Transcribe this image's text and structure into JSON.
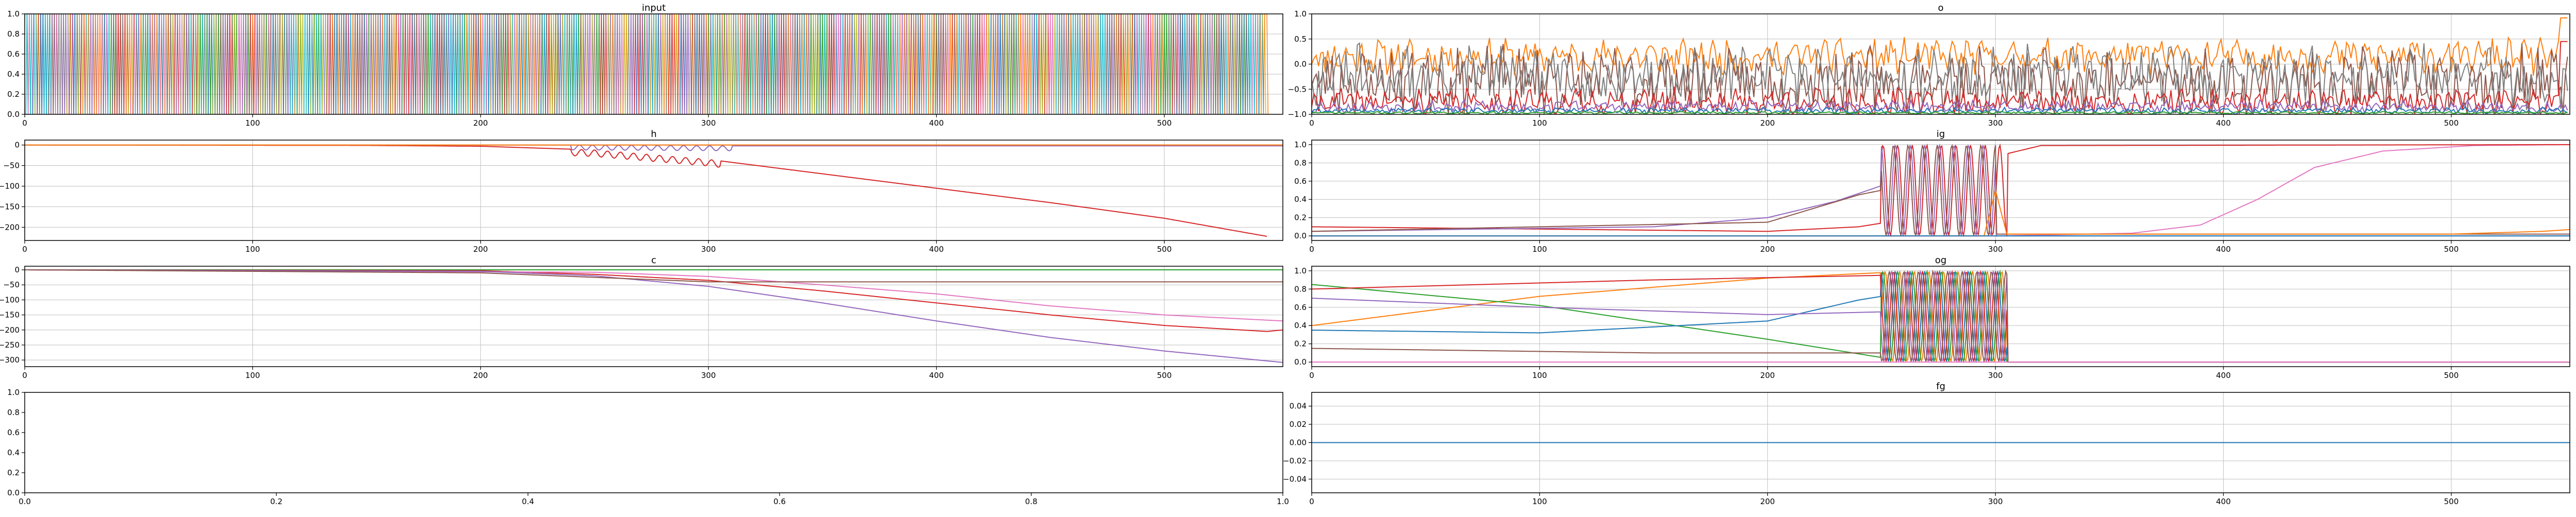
{
  "figure": {
    "background": "#ffffff"
  },
  "palette": [
    "#1f77b4",
    "#ff7f0e",
    "#2ca02c",
    "#d62728",
    "#9467bd",
    "#8c564b",
    "#e377c2",
    "#7f7f7f",
    "#bcbd22",
    "#17becf"
  ],
  "chart_data": [
    {
      "id": "input",
      "type": "line",
      "title": "input",
      "xlim": [
        0,
        552
      ],
      "ylim": [
        0,
        1.0
      ],
      "xticks": [
        0,
        100,
        200,
        300,
        400,
        500
      ],
      "yticks": [
        0.0,
        0.2,
        0.4,
        0.6,
        0.8,
        1.0
      ],
      "ytick_labels": [
        "0.0",
        "0.2",
        "0.4",
        "0.6",
        "0.8",
        "1.0"
      ],
      "grid": true,
      "series": [
        {
          "pattern": "onehot",
          "n_series": 10,
          "length": 545,
          "seed": 7
        }
      ]
    },
    {
      "id": "o",
      "type": "line",
      "title": "o",
      "xlim": [
        0,
        552
      ],
      "ylim": [
        -1.0,
        1.0
      ],
      "xticks": [
        0,
        100,
        200,
        300,
        400,
        500
      ],
      "yticks": [
        -1.0,
        -0.5,
        0.0,
        0.5,
        1.0
      ],
      "ytick_labels": [
        "−1.0",
        "−0.5",
        "0.0",
        "0.5",
        "1.0"
      ],
      "grid": true,
      "series": [
        {
          "color": "#ff7f0e",
          "pattern": "noise",
          "base": 0.15,
          "amp": 0.28,
          "length": 552,
          "seed": 11,
          "end_jump": 0.92
        },
        {
          "color": "#8c564b",
          "pattern": "noise",
          "base": -0.35,
          "amp": 0.55,
          "length": 552,
          "seed": 23
        },
        {
          "color": "#7f7f7f",
          "pattern": "noise",
          "base": -0.25,
          "amp": 0.5,
          "length": 552,
          "seed": 31
        },
        {
          "color": "#d62728",
          "pattern": "noise",
          "base": -0.75,
          "amp": 0.22,
          "length": 552,
          "seed": 41,
          "end_jump": 0.45
        },
        {
          "color": "#9467bd",
          "pattern": "noise",
          "base": -0.85,
          "amp": 0.1,
          "length": 552,
          "seed": 53
        },
        {
          "color": "#1f77b4",
          "pattern": "noise",
          "base": -0.93,
          "amp": 0.05,
          "length": 552,
          "seed": 61
        },
        {
          "color": "#2ca02c",
          "pattern": "noise",
          "base": -0.97,
          "amp": 0.02,
          "length": 552,
          "seed": 71
        }
      ]
    },
    {
      "id": "h",
      "type": "line",
      "title": "h",
      "xlim": [
        0,
        552
      ],
      "ylim": [
        -232,
        12
      ],
      "xticks": [
        0,
        100,
        200,
        300,
        400,
        500
      ],
      "yticks": [
        0,
        -50,
        -100,
        -150,
        -200
      ],
      "ytick_labels": [
        "0",
        "−50",
        "−100",
        "−150",
        "−200"
      ],
      "grid": true,
      "series": [
        {
          "color": "#d62728",
          "pattern": "points",
          "points": [
            [
              0,
              0
            ],
            [
              150,
              -1
            ],
            [
              200,
              -3
            ],
            [
              250,
              -12
            ],
            [
              300,
              -35
            ],
            [
              350,
              -70
            ],
            [
              400,
              -105
            ],
            [
              450,
              -140
            ],
            [
              500,
              -178
            ],
            [
              545,
              -222
            ]
          ],
          "osc": {
            "from": 240,
            "to": 305,
            "amp": 16
          }
        },
        {
          "color": "#9467bd",
          "pattern": "points",
          "points": [
            [
              0,
              0
            ],
            [
              240,
              0
            ],
            [
              310,
              -2
            ],
            [
              552,
              -2
            ]
          ],
          "osc": {
            "from": 240,
            "to": 310,
            "amp": 12
          }
        },
        {
          "color": "#8c564b",
          "pattern": "points",
          "points": [
            [
              0,
              0
            ],
            [
              552,
              0
            ]
          ]
        },
        {
          "color": "#ff7f0e",
          "pattern": "points",
          "points": [
            [
              0,
              0
            ],
            [
              552,
              0
            ]
          ]
        }
      ]
    },
    {
      "id": "ig",
      "type": "line",
      "title": "ig",
      "xlim": [
        0,
        552
      ],
      "ylim": [
        -0.05,
        1.05
      ],
      "xticks": [
        0,
        100,
        200,
        300,
        400,
        500
      ],
      "yticks": [
        0.0,
        0.2,
        0.4,
        0.6,
        0.8,
        1.0
      ],
      "ytick_labels": [
        "0.0",
        "0.2",
        "0.4",
        "0.6",
        "0.8",
        "1.0"
      ],
      "grid": true,
      "series": [
        {
          "color": "#e377c2",
          "pattern": "points",
          "points": [
            [
              0,
              0.0
            ],
            [
              300,
              0.0
            ],
            [
              360,
              0.03
            ],
            [
              390,
              0.12
            ],
            [
              415,
              0.4
            ],
            [
              440,
              0.75
            ],
            [
              470,
              0.93
            ],
            [
              510,
              0.99
            ],
            [
              552,
              1.0
            ]
          ]
        },
        {
          "color": "#d62728",
          "pattern": "points",
          "points": [
            [
              0,
              0.1
            ],
            [
              200,
              0.05
            ],
            [
              240,
              0.1
            ],
            [
              250,
              0.14
            ]
          ],
          "osc": {
            "from": 250,
            "to": 305
          },
          "after": [
            [
              305,
              0.9
            ],
            [
              320,
              0.99
            ],
            [
              552,
              1.0
            ]
          ]
        },
        {
          "color": "#9467bd",
          "pattern": "points",
          "points": [
            [
              0,
              0.05
            ],
            [
              150,
              0.1
            ],
            [
              200,
              0.2
            ],
            [
              230,
              0.38
            ],
            [
              250,
              0.55
            ]
          ],
          "osc": {
            "from": 250,
            "to": 300
          },
          "after": [
            [
              300,
              0.0
            ],
            [
              552,
              0.0
            ]
          ]
        },
        {
          "color": "#8c564b",
          "pattern": "points",
          "points": [
            [
              0,
              0.05
            ],
            [
              200,
              0.15
            ],
            [
              240,
              0.45
            ],
            [
              250,
              0.5
            ]
          ],
          "osc": {
            "from": 250,
            "to": 300
          },
          "after": [
            [
              300,
              0.02
            ],
            [
              552,
              0.02
            ]
          ]
        },
        {
          "color": "#ff7f0e",
          "pattern": "points",
          "points": [
            [
              0,
              0.0
            ],
            [
              295,
              0.0
            ],
            [
              300,
              0.5
            ],
            [
              305,
              0.02
            ],
            [
              500,
              0.02
            ],
            [
              540,
              0.05
            ],
            [
              552,
              0.07
            ]
          ]
        },
        {
          "color": "#1f77b4",
          "pattern": "points",
          "points": [
            [
              0,
              0.0
            ],
            [
              552,
              0.0
            ]
          ]
        }
      ]
    },
    {
      "id": "c",
      "type": "line",
      "title": "c",
      "xlim": [
        0,
        552
      ],
      "ylim": [
        -322,
        12
      ],
      "xticks": [
        0,
        100,
        200,
        300,
        400,
        500
      ],
      "yticks": [
        0,
        -50,
        -100,
        -150,
        -200,
        -250,
        -300
      ],
      "ytick_labels": [
        "0",
        "−50",
        "−100",
        "−150",
        "−200",
        "−250",
        "−300"
      ],
      "grid": true,
      "series": [
        {
          "color": "#2ca02c",
          "pattern": "points",
          "points": [
            [
              0,
              0
            ],
            [
              552,
              0
            ]
          ]
        },
        {
          "color": "#d62728",
          "pattern": "points",
          "points": [
            [
              0,
              0
            ],
            [
              200,
              -3
            ],
            [
              250,
              -15
            ],
            [
              300,
              -35
            ],
            [
              350,
              -70
            ],
            [
              400,
              -110
            ],
            [
              450,
              -150
            ],
            [
              500,
              -185
            ],
            [
              545,
              -205
            ],
            [
              552,
              -200
            ]
          ]
        },
        {
          "color": "#e377c2",
          "pattern": "points",
          "points": [
            [
              0,
              0
            ],
            [
              250,
              -8
            ],
            [
              300,
              -22
            ],
            [
              350,
              -50
            ],
            [
              400,
              -80
            ],
            [
              450,
              -120
            ],
            [
              500,
              -150
            ],
            [
              552,
              -170
            ]
          ]
        },
        {
          "color": "#9467bd",
          "pattern": "points",
          "points": [
            [
              0,
              0
            ],
            [
              200,
              -5
            ],
            [
              250,
              -20
            ],
            [
              300,
              -55
            ],
            [
              350,
              -110
            ],
            [
              400,
              -170
            ],
            [
              450,
              -225
            ],
            [
              500,
              -270
            ],
            [
              552,
              -308
            ]
          ]
        },
        {
          "color": "#8c564b",
          "pattern": "points",
          "points": [
            [
              0,
              0
            ],
            [
              200,
              -10
            ],
            [
              300,
              -40
            ],
            [
              552,
              -40
            ]
          ]
        }
      ]
    },
    {
      "id": "og",
      "type": "line",
      "title": "og",
      "xlim": [
        0,
        552
      ],
      "ylim": [
        -0.05,
        1.05
      ],
      "xticks": [
        0,
        100,
        200,
        300,
        400,
        500
      ],
      "yticks": [
        0.0,
        0.2,
        0.4,
        0.6,
        0.8,
        1.0
      ],
      "ytick_labels": [
        "0.0",
        "0.2",
        "0.4",
        "0.6",
        "0.8",
        "1.0"
      ],
      "grid": true,
      "series": [
        {
          "color": "#ff7f0e",
          "pattern": "points",
          "points": [
            [
              0,
              0.4
            ],
            [
              100,
              0.72
            ],
            [
              200,
              0.92
            ],
            [
              250,
              0.98
            ]
          ],
          "osc": {
            "from": 250,
            "to": 305
          },
          "after": [
            [
              305,
              0.0
            ],
            [
              552,
              0.0
            ]
          ]
        },
        {
          "color": "#2ca02c",
          "pattern": "points",
          "points": [
            [
              0,
              0.85
            ],
            [
              100,
              0.62
            ],
            [
              200,
              0.25
            ],
            [
              250,
              0.05
            ]
          ],
          "osc": {
            "from": 250,
            "to": 305
          },
          "after": [
            [
              305,
              0.0
            ],
            [
              552,
              0.0
            ]
          ]
        },
        {
          "color": "#1f77b4",
          "pattern": "points",
          "points": [
            [
              0,
              0.35
            ],
            [
              100,
              0.32
            ],
            [
              200,
              0.45
            ],
            [
              240,
              0.68
            ],
            [
              250,
              0.72
            ]
          ],
          "osc": {
            "from": 250,
            "to": 305
          },
          "after": [
            [
              305,
              0.0
            ],
            [
              552,
              0.0
            ]
          ]
        },
        {
          "color": "#d62728",
          "pattern": "points",
          "points": [
            [
              0,
              0.8
            ],
            [
              150,
              0.9
            ],
            [
              250,
              0.95
            ]
          ],
          "osc": {
            "from": 250,
            "to": 305
          },
          "after": [
            [
              305,
              0.0
            ],
            [
              552,
              0.0
            ]
          ]
        },
        {
          "color": "#9467bd",
          "pattern": "points",
          "points": [
            [
              0,
              0.7
            ],
            [
              100,
              0.6
            ],
            [
              200,
              0.52
            ],
            [
              250,
              0.55
            ]
          ],
          "osc": {
            "from": 250,
            "to": 305
          },
          "after": [
            [
              305,
              0.0
            ],
            [
              552,
              0.0
            ]
          ]
        },
        {
          "color": "#8c564b",
          "pattern": "points",
          "points": [
            [
              0,
              0.15
            ],
            [
              150,
              0.1
            ],
            [
              250,
              0.1
            ]
          ],
          "osc": {
            "from": 250,
            "to": 305
          },
          "after": [
            [
              305,
              0.0
            ],
            [
              552,
              0.0
            ]
          ]
        },
        {
          "color": "#e377c2",
          "pattern": "points",
          "points": [
            [
              0,
              0.0
            ],
            [
              552,
              0.0
            ]
          ]
        }
      ]
    },
    {
      "id": "empty",
      "type": "line",
      "title": "",
      "xlim": [
        0,
        1.0
      ],
      "ylim": [
        0,
        1.0
      ],
      "xticks": [
        0.0,
        0.2,
        0.4,
        0.6,
        0.8,
        1.0
      ],
      "xtick_labels": [
        "0.0",
        "0.2",
        "0.4",
        "0.6",
        "0.8",
        "1.0"
      ],
      "yticks": [
        0.0,
        0.2,
        0.4,
        0.6,
        0.8,
        1.0
      ],
      "ytick_labels": [
        "0.0",
        "0.2",
        "0.4",
        "0.6",
        "0.8",
        "1.0"
      ],
      "grid": false,
      "series": []
    },
    {
      "id": "fg",
      "type": "line",
      "title": "fg",
      "xlim": [
        0,
        552
      ],
      "ylim": [
        -0.055,
        0.055
      ],
      "xticks": [
        0,
        100,
        200,
        300,
        400,
        500
      ],
      "yticks": [
        -0.04,
        -0.02,
        0.0,
        0.02,
        0.04
      ],
      "ytick_labels": [
        "−0.04",
        "−0.02",
        "0.00",
        "0.02",
        "0.04"
      ],
      "grid": true,
      "series": [
        {
          "color": "#1f77b4",
          "pattern": "points",
          "points": [
            [
              0,
              0.0
            ],
            [
              552,
              0.0
            ]
          ]
        }
      ]
    }
  ]
}
